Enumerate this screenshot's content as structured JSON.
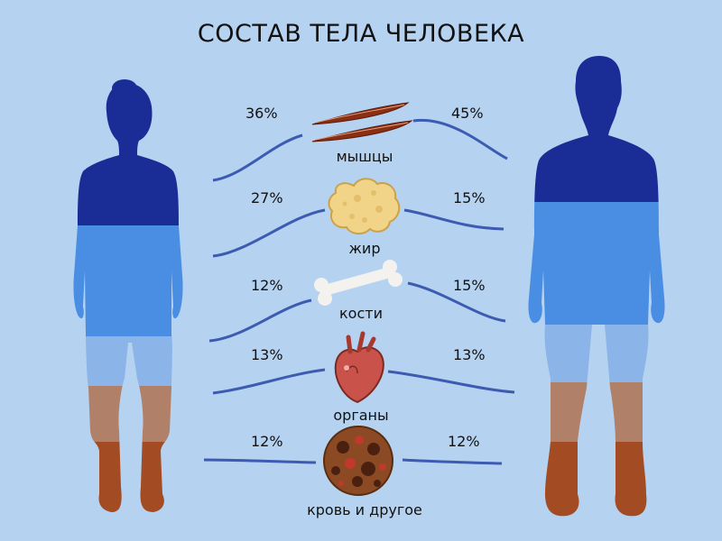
{
  "title": "СОСТАВ ТЕЛА ЧЕЛОВЕКА",
  "colors": {
    "background": "#b5d3f0",
    "muscle_band": "#1a2d96",
    "fat_band": "#4a8ee3",
    "bone_band": "#8bb4e8",
    "organ_band": "#b08068",
    "blood_band": "#a34b22",
    "connector": "#3d5bb0"
  },
  "components": [
    {
      "label": "мышцы",
      "female": "36%",
      "male": "45%",
      "icon": "muscle-icon"
    },
    {
      "label": "жир",
      "female": "27%",
      "male": "15%",
      "icon": "fat-icon"
    },
    {
      "label": "кости",
      "female": "12%",
      "male": "15%",
      "icon": "bone-icon"
    },
    {
      "label": "органы",
      "female": "13%",
      "male": "13%",
      "icon": "heart-icon"
    },
    {
      "label": "кровь и другое",
      "female": "12%",
      "male": "12%",
      "icon": "blood-cells-icon"
    }
  ]
}
